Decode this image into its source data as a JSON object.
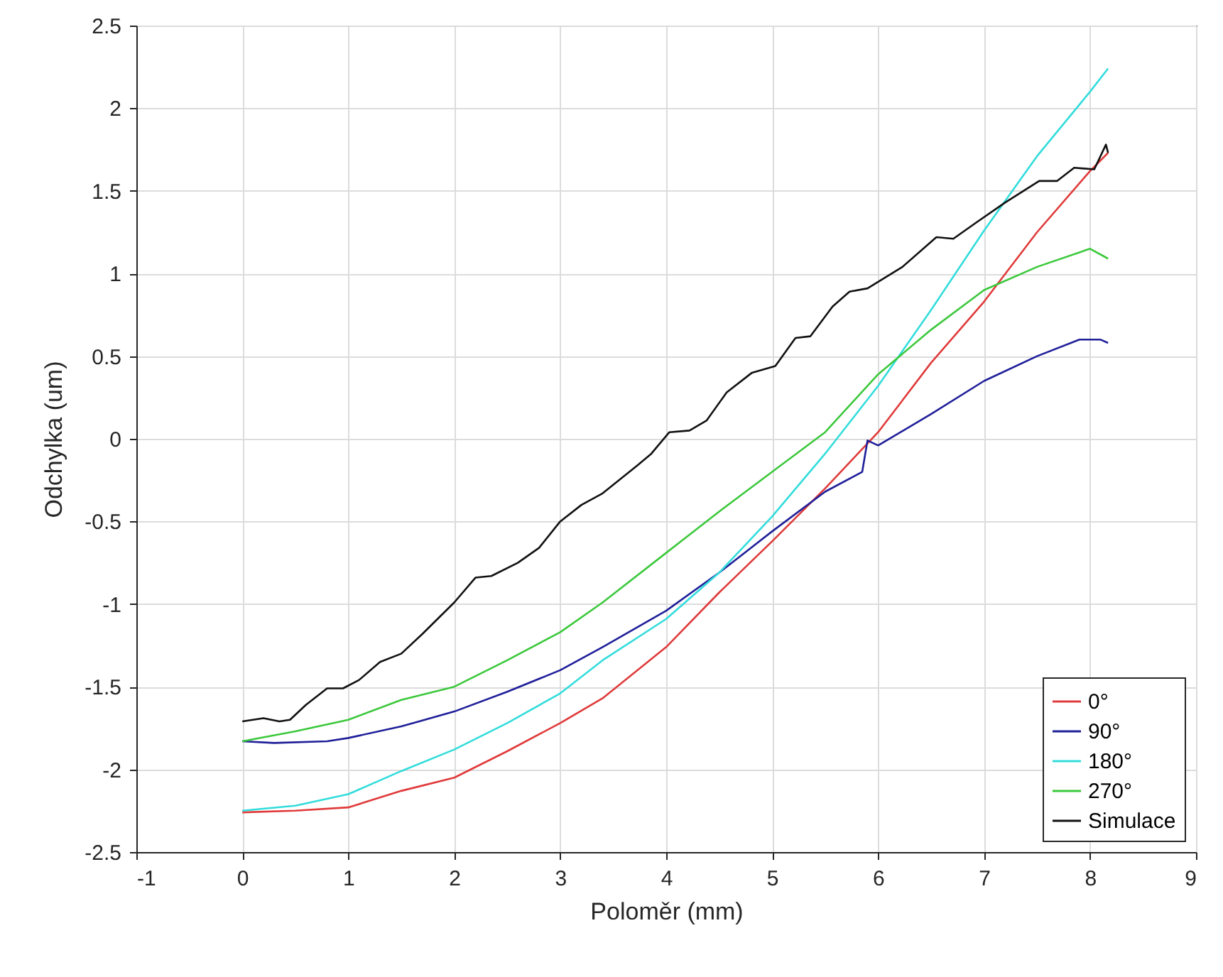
{
  "chart_data": {
    "type": "line",
    "xlabel": "Poloměr (mm)",
    "ylabel": "Odchylka (um)",
    "xlim": [
      -1,
      9
    ],
    "ylim": [
      -2.5,
      2.5
    ],
    "xticks": [
      -1,
      0,
      1,
      2,
      3,
      4,
      5,
      6,
      7,
      8,
      9
    ],
    "yticks": [
      -2.5,
      -2,
      -1.5,
      -1,
      -0.5,
      0,
      0.5,
      1,
      1.5,
      2,
      2.5
    ],
    "grid": true,
    "legend": "bottom right",
    "line_style": "solid",
    "series": [
      {
        "name": "0°",
        "color": "#e03a3a",
        "x": [
          0,
          0.5,
          1,
          1.5,
          2,
          2.5,
          3,
          3.4,
          4,
          4.5,
          5,
          5.5,
          6,
          6.5,
          7,
          7.5,
          8,
          8.17
        ],
        "values": [
          -2.26,
          -2.25,
          -2.23,
          -2.13,
          -2.05,
          -1.89,
          -1.72,
          -1.57,
          -1.26,
          -0.93,
          -0.62,
          -0.3,
          0.04,
          0.46,
          0.83,
          1.25,
          1.62,
          1.73
        ]
      },
      {
        "name": "90°",
        "color": "#1f1f9a",
        "x": [
          0,
          0.3,
          0.8,
          1,
          1.5,
          2,
          2.5,
          3,
          3.4,
          4,
          4.5,
          5,
          5.5,
          5.85,
          5.9,
          6,
          6.5,
          7,
          7.5,
          7.9,
          8.1,
          8.17
        ],
        "values": [
          -1.83,
          -1.84,
          -1.83,
          -1.81,
          -1.74,
          -1.65,
          -1.53,
          -1.4,
          -1.26,
          -1.04,
          -0.81,
          -0.56,
          -0.32,
          -0.2,
          -0.01,
          -0.04,
          0.15,
          0.35,
          0.5,
          0.6,
          0.6,
          0.58
        ]
      },
      {
        "name": "180°",
        "color": "#33dcdc",
        "x": [
          0,
          0.5,
          1,
          1.5,
          2,
          2.5,
          3,
          3.4,
          4,
          4.5,
          5,
          5.5,
          6,
          6.5,
          7,
          7.5,
          8,
          8.17
        ],
        "values": [
          -2.25,
          -2.22,
          -2.15,
          -2.01,
          -1.88,
          -1.72,
          -1.54,
          -1.34,
          -1.09,
          -0.81,
          -0.47,
          -0.09,
          0.32,
          0.78,
          1.26,
          1.71,
          2.1,
          2.24
        ]
      },
      {
        "name": "270°",
        "color": "#3cc83c",
        "x": [
          0,
          0.5,
          1,
          1.5,
          2,
          2.5,
          3,
          3.4,
          4,
          4.5,
          5,
          5.5,
          6,
          6.5,
          7,
          7.5,
          8,
          8.17
        ],
        "values": [
          -1.83,
          -1.77,
          -1.7,
          -1.58,
          -1.5,
          -1.34,
          -1.17,
          -0.99,
          -0.69,
          -0.44,
          -0.2,
          0.04,
          0.39,
          0.66,
          0.9,
          1.04,
          1.15,
          1.09
        ]
      },
      {
        "name": "Simulace",
        "color": "#111111",
        "x": [
          0,
          0.2,
          0.35,
          0.45,
          0.6,
          0.8,
          0.95,
          1.1,
          1.3,
          1.5,
          1.7,
          2,
          2.2,
          2.35,
          2.6,
          2.8,
          3,
          3.2,
          3.4,
          3.73,
          3.86,
          4.03,
          4.22,
          4.38,
          4.57,
          4.81,
          5.03,
          5.22,
          5.36,
          5.57,
          5.73,
          5.9,
          6.23,
          6.55,
          6.71,
          6.93,
          7.2,
          7.52,
          7.69,
          7.85,
          8.04,
          8.15,
          8.17
        ],
        "values": [
          -1.71,
          -1.69,
          -1.71,
          -1.7,
          -1.61,
          -1.51,
          -1.51,
          -1.46,
          -1.35,
          -1.3,
          -1.18,
          -0.99,
          -0.84,
          -0.83,
          -0.75,
          -0.66,
          -0.5,
          -0.4,
          -0.33,
          -0.16,
          -0.09,
          0.04,
          0.05,
          0.11,
          0.28,
          0.4,
          0.44,
          0.61,
          0.62,
          0.8,
          0.89,
          0.91,
          1.04,
          1.22,
          1.21,
          1.31,
          1.43,
          1.56,
          1.56,
          1.64,
          1.63,
          1.78,
          1.73
        ]
      }
    ]
  }
}
